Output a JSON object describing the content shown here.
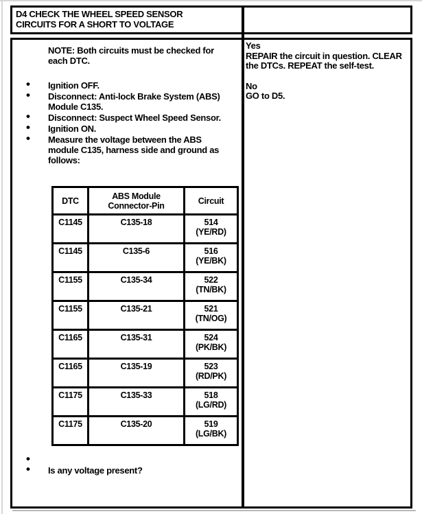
{
  "colors": {
    "border": "#000000",
    "page_edge": "#d6d6d6",
    "background": "#ffffff"
  },
  "header": {
    "title_lines": [
      "D4 CHECK THE WHEEL SPEED SENSOR",
      "CIRCUITS FOR A SHORT TO VOLTAGE"
    ]
  },
  "procedure": {
    "note": "NOTE: Both circuits must be checked for each DTC.",
    "steps": [
      "Ignition OFF.",
      "Disconnect: Anti-lock Brake System (ABS) Module C135.",
      "Disconnect: Suspect Wheel Speed Sensor.",
      "Ignition ON.",
      "Measure the voltage between the ABS module C135, harness side and ground as follows:"
    ],
    "question": "Is any voltage present?"
  },
  "measurement_table": {
    "headers": [
      "DTC",
      "ABS Module Connector-Pin",
      "Circuit"
    ],
    "rows": [
      {
        "dtc": "C1145",
        "pin": "C135-18",
        "circuit": "514",
        "wire": "(YE/RD)"
      },
      {
        "dtc": "C1145",
        "pin": "C135-6",
        "circuit": "516",
        "wire": "(YE/BK)"
      },
      {
        "dtc": "C1155",
        "pin": "C135-34",
        "circuit": "522",
        "wire": "(TN/BK)"
      },
      {
        "dtc": "C1155",
        "pin": "C135-21",
        "circuit": "521",
        "wire": "(TN/OG)"
      },
      {
        "dtc": "C1165",
        "pin": "C135-31",
        "circuit": "524",
        "wire": "(PK/BK)"
      },
      {
        "dtc": "C1165",
        "pin": "C135-19",
        "circuit": "523",
        "wire": "(RD/PK)"
      },
      {
        "dtc": "C1175",
        "pin": "C135-33",
        "circuit": "518",
        "wire": "(LG/RD)"
      },
      {
        "dtc": "C1175",
        "pin": "C135-20",
        "circuit": "519",
        "wire": "(LG/BK)"
      }
    ]
  },
  "results": {
    "yes_label": "Yes",
    "yes_action": "REPAIR the circuit in question. CLEAR the DTCs. REPEAT the self-test.",
    "no_label": "No",
    "no_action": "GO to D5."
  }
}
